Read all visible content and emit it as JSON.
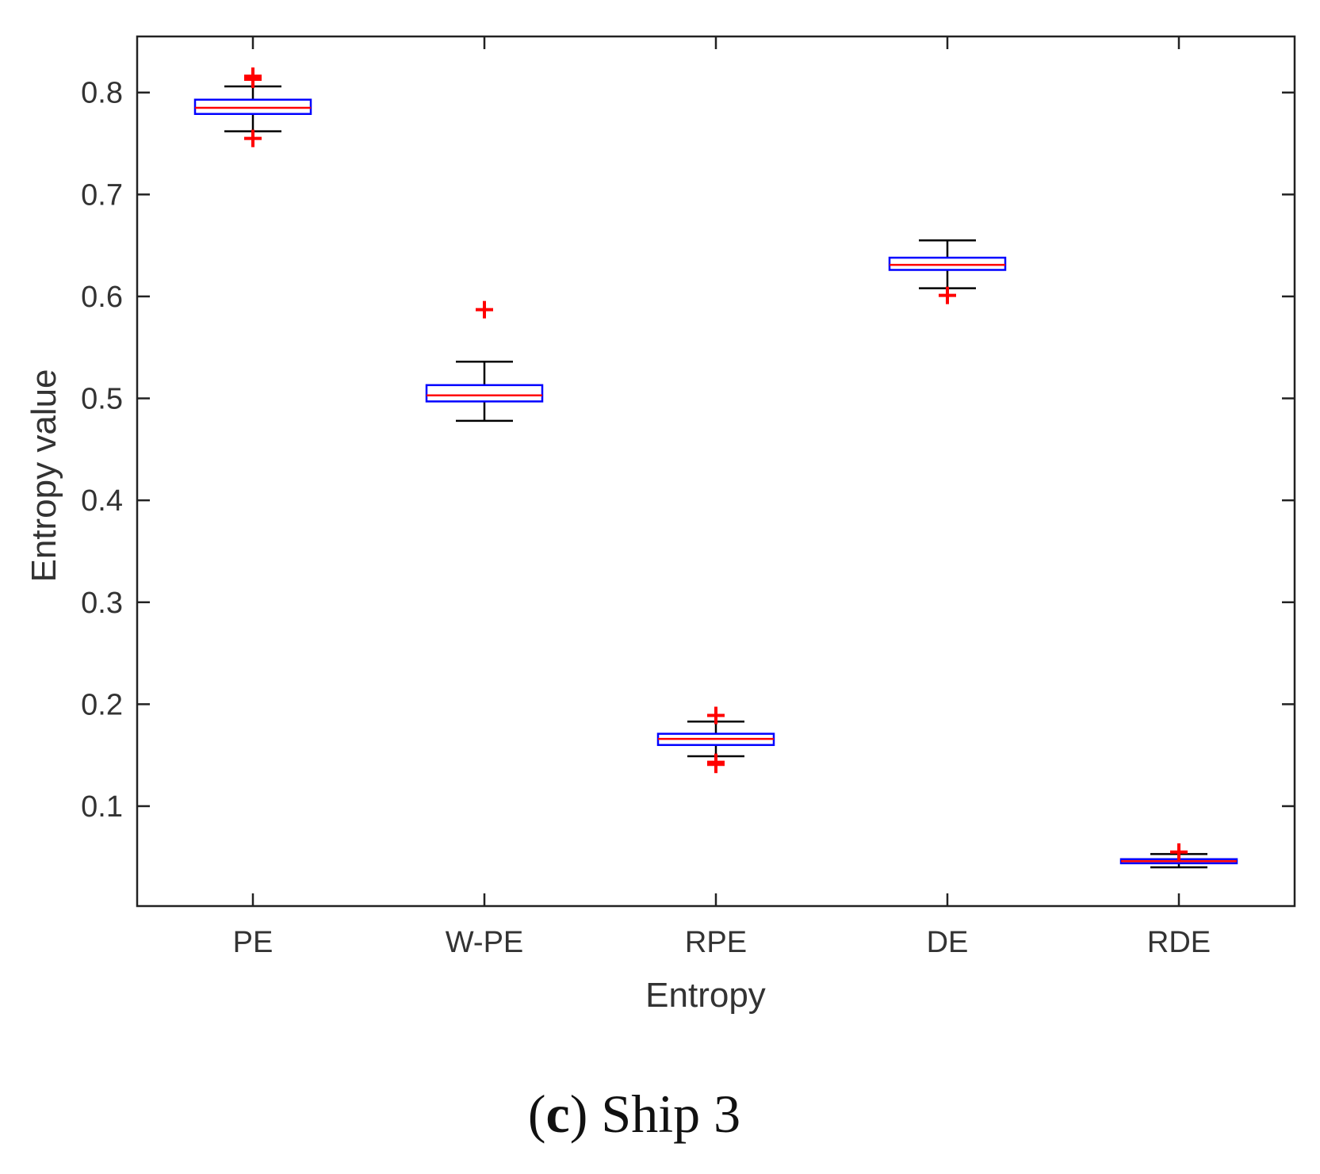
{
  "chart_data": {
    "type": "boxplot",
    "title": "",
    "xlabel": "Entropy",
    "ylabel": "Entropy value",
    "ylim": [
      0.002,
      0.855
    ],
    "yticks": [
      0.1,
      0.2,
      0.3,
      0.4,
      0.5,
      0.6,
      0.7,
      0.8
    ],
    "ytick_labels": [
      "0.1",
      "0.2",
      "0.3",
      "0.4",
      "0.5",
      "0.6",
      "0.7",
      "0.8"
    ],
    "categories": [
      "PE",
      "W-PE",
      "RPE",
      "DE",
      "RDE"
    ],
    "series": [
      {
        "name": "PE",
        "whisker_low": 0.762,
        "q1": 0.779,
        "median": 0.785,
        "q3": 0.793,
        "whisker_high": 0.806,
        "outliers": [
          0.816,
          0.813,
          0.755
        ]
      },
      {
        "name": "W-PE",
        "whisker_low": 0.478,
        "q1": 0.497,
        "median": 0.503,
        "q3": 0.513,
        "whisker_high": 0.536,
        "outliers": [
          0.587
        ]
      },
      {
        "name": "RPE",
        "whisker_low": 0.149,
        "q1": 0.16,
        "median": 0.166,
        "q3": 0.171,
        "whisker_high": 0.183,
        "outliers": [
          0.189,
          0.143,
          0.141
        ]
      },
      {
        "name": "DE",
        "whisker_low": 0.608,
        "q1": 0.626,
        "median": 0.631,
        "q3": 0.638,
        "whisker_high": 0.655,
        "outliers": [
          0.601
        ]
      },
      {
        "name": "RDE",
        "whisker_low": 0.04,
        "q1": 0.044,
        "median": 0.046,
        "q3": 0.048,
        "whisker_high": 0.053,
        "outliers": [
          0.055
        ]
      }
    ],
    "colors": {
      "box": "#0000ff",
      "median": "#ff0000",
      "whisker": "#000000",
      "outlier": "#ff0000",
      "axis": "#222222"
    },
    "grid": false
  },
  "caption": {
    "label": "c",
    "text": "Ship 3"
  }
}
